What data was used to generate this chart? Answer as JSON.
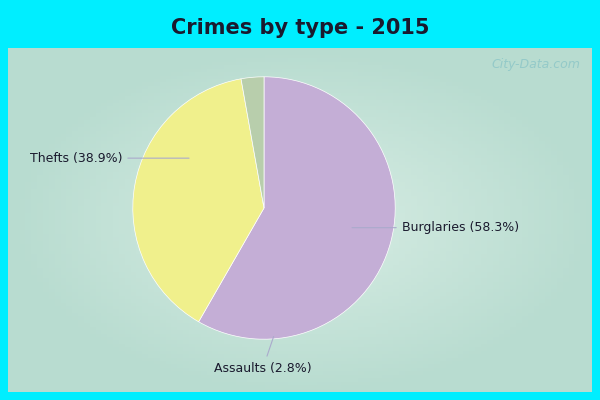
{
  "title": "Crimes by type - 2015",
  "slices": [
    {
      "label": "Burglaries",
      "pct": 58.3,
      "color": "#c4aed6"
    },
    {
      "label": "Thefts",
      "pct": 38.9,
      "color": "#f0f08c"
    },
    {
      "label": "Assaults",
      "pct": 2.8,
      "color": "#b8ceac"
    }
  ],
  "border_color": "#00eeff",
  "bg_center": "#d8ede4",
  "bg_edge": "#c0e4d8",
  "title_bg": "#00eeff",
  "title_fontsize": 15,
  "label_fontsize": 9,
  "title_color": "#1a1a2e",
  "label_color": "#1a1a2e",
  "watermark": "City-Data.com",
  "watermark_color": "#90c8c8",
  "border_width": 8
}
